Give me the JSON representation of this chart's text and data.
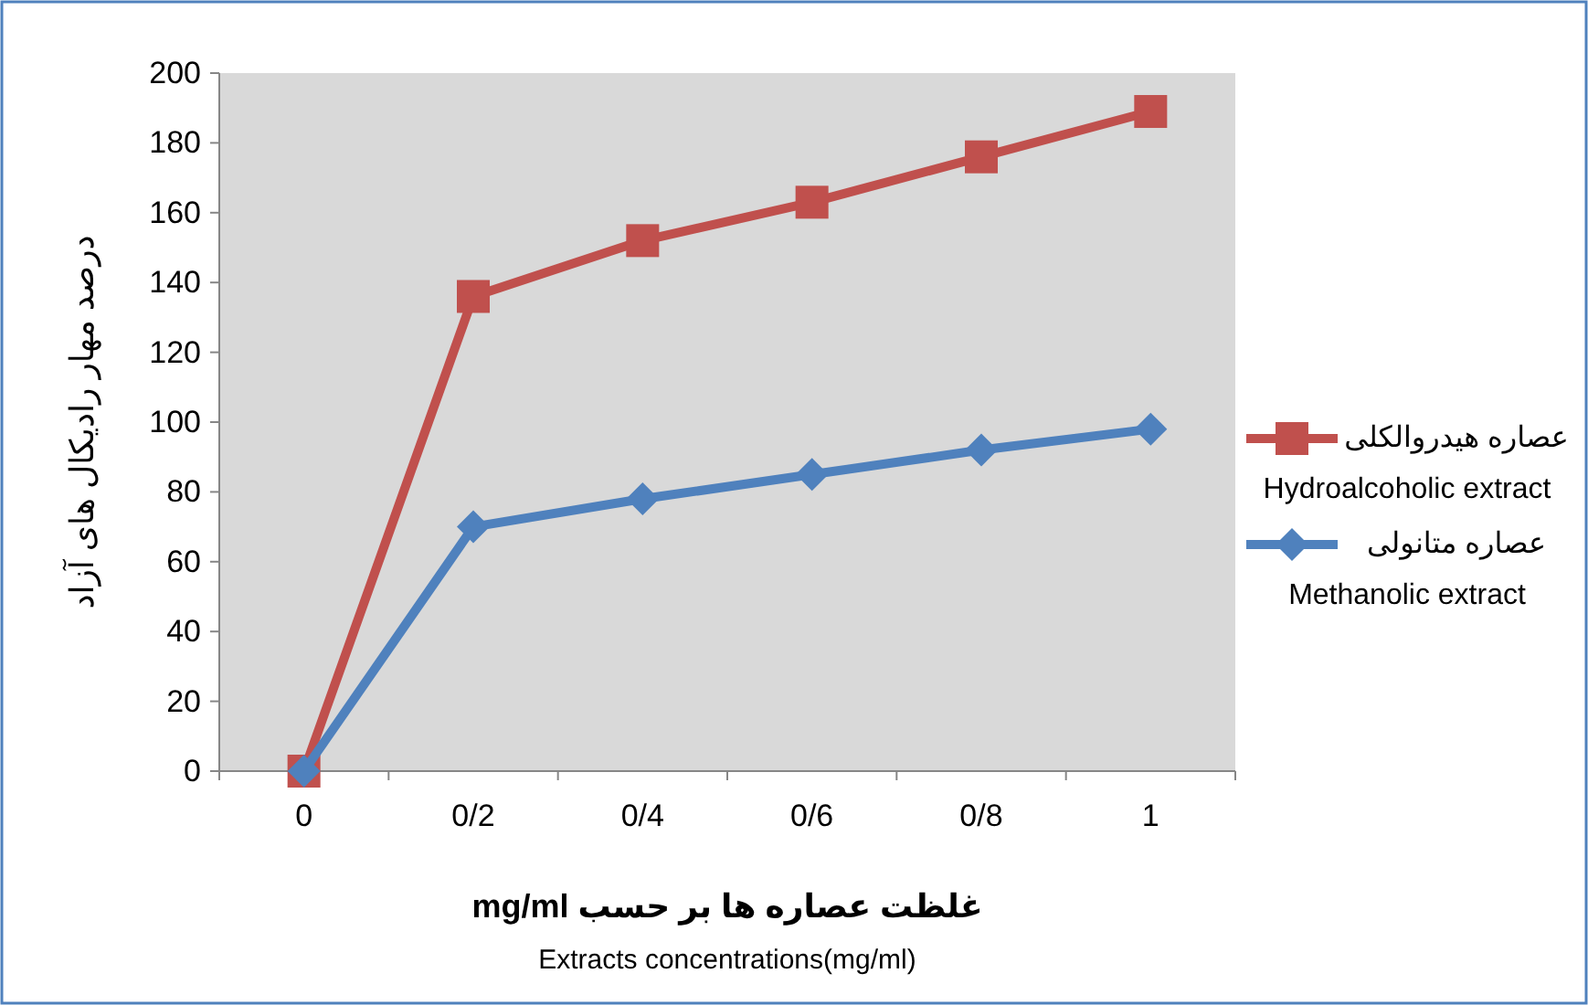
{
  "chart_data": {
    "type": "line",
    "ylabel": "درصد مهار رادیکال های آزاد",
    "xlabel": "غلظت عصاره ها بر حسب  mg/ml",
    "annotations": [
      "Extracts concentrations(mg/ml)"
    ],
    "categories": [
      "0",
      "0/2",
      "0/4",
      "0/6",
      "0/8",
      "1"
    ],
    "series": [
      {
        "name": "عصاره هیدروالکلی\nHydroalcoholic extract",
        "color": "#c0504d",
        "marker": "square",
        "values": [
          0,
          136,
          152,
          163,
          176,
          189
        ]
      },
      {
        "name": "عصاره متانولی\nMethanolic extract",
        "color": "#4f81bd",
        "marker": "diamond",
        "values": [
          0,
          70,
          78,
          85,
          92,
          98
        ]
      }
    ],
    "ylim": [
      0,
      200
    ],
    "yticks": [
      0,
      20,
      40,
      60,
      80,
      100,
      120,
      140,
      160,
      180,
      200
    ],
    "legend": "right"
  }
}
